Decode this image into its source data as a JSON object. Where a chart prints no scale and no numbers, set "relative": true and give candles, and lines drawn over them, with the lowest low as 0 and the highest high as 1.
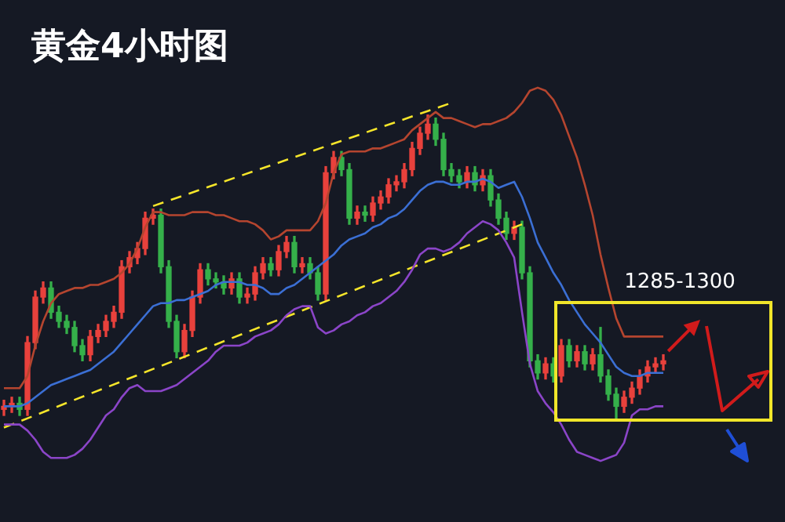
{
  "chart_data": {
    "type": "candlestick",
    "title": "黄金4小时图",
    "relative": true,
    "categories": [
      null,
      null,
      null,
      null,
      null,
      null,
      null,
      null,
      null,
      null,
      null,
      null,
      null,
      null,
      null,
      null,
      null,
      null,
      null,
      null,
      null,
      null,
      null,
      null,
      null,
      null,
      null,
      null,
      null,
      null,
      null,
      null,
      null,
      null,
      null,
      null,
      null,
      null,
      null,
      null,
      null,
      null,
      null,
      null,
      null,
      null,
      null,
      null,
      null,
      null,
      null,
      null,
      null,
      null,
      null,
      null,
      null,
      null,
      null,
      null,
      null,
      null,
      null,
      null,
      null,
      null,
      null,
      null,
      null,
      null,
      null,
      null,
      null,
      null,
      null,
      null,
      null,
      null,
      null,
      null,
      null,
      null,
      null,
      null,
      null
    ],
    "ohlc": [
      [
        0.03,
        0.06,
        0.01,
        0.04
      ],
      [
        0.04,
        0.07,
        0.02,
        0.05
      ],
      [
        0.05,
        0.07,
        0.01,
        0.03
      ],
      [
        0.03,
        0.27,
        0.01,
        0.25
      ],
      [
        0.25,
        0.42,
        0.23,
        0.4
      ],
      [
        0.4,
        0.45,
        0.38,
        0.43
      ],
      [
        0.43,
        0.45,
        0.33,
        0.35
      ],
      [
        0.35,
        0.37,
        0.3,
        0.32
      ],
      [
        0.32,
        0.34,
        0.28,
        0.3
      ],
      [
        0.3,
        0.32,
        0.22,
        0.24
      ],
      [
        0.24,
        0.26,
        0.19,
        0.21
      ],
      [
        0.21,
        0.29,
        0.19,
        0.27
      ],
      [
        0.27,
        0.31,
        0.25,
        0.29
      ],
      [
        0.29,
        0.34,
        0.27,
        0.32
      ],
      [
        0.32,
        0.37,
        0.3,
        0.35
      ],
      [
        0.35,
        0.52,
        0.33,
        0.5
      ],
      [
        0.5,
        0.55,
        0.48,
        0.53
      ],
      [
        0.53,
        0.58,
        0.51,
        0.56
      ],
      [
        0.56,
        0.68,
        0.54,
        0.66
      ],
      [
        0.66,
        0.69,
        0.64,
        0.67
      ],
      [
        0.67,
        0.69,
        0.48,
        0.5
      ],
      [
        0.5,
        0.52,
        0.3,
        0.32
      ],
      [
        0.32,
        0.34,
        0.2,
        0.22
      ],
      [
        0.22,
        0.31,
        0.2,
        0.29
      ],
      [
        0.29,
        0.42,
        0.27,
        0.4
      ],
      [
        0.4,
        0.51,
        0.38,
        0.49
      ],
      [
        0.49,
        0.51,
        0.44,
        0.46
      ],
      [
        0.46,
        0.48,
        0.43,
        0.45
      ],
      [
        0.45,
        0.47,
        0.41,
        0.43
      ],
      [
        0.43,
        0.48,
        0.41,
        0.46
      ],
      [
        0.46,
        0.48,
        0.38,
        0.4
      ],
      [
        0.4,
        0.43,
        0.38,
        0.41
      ],
      [
        0.41,
        0.5,
        0.39,
        0.48
      ],
      [
        0.48,
        0.53,
        0.46,
        0.51
      ],
      [
        0.51,
        0.53,
        0.47,
        0.49
      ],
      [
        0.49,
        0.57,
        0.47,
        0.55
      ],
      [
        0.55,
        0.6,
        0.53,
        0.58
      ],
      [
        0.58,
        0.6,
        0.48,
        0.5
      ],
      [
        0.5,
        0.53,
        0.48,
        0.51
      ],
      [
        0.51,
        0.53,
        0.46,
        0.48
      ],
      [
        0.48,
        0.5,
        0.39,
        0.41
      ],
      [
        0.41,
        0.83,
        0.39,
        0.81
      ],
      [
        0.81,
        0.88,
        0.79,
        0.86
      ],
      [
        0.86,
        0.88,
        0.8,
        0.82
      ],
      [
        0.82,
        0.84,
        0.64,
        0.66
      ],
      [
        0.66,
        0.7,
        0.64,
        0.68
      ],
      [
        0.68,
        0.7,
        0.65,
        0.67
      ],
      [
        0.67,
        0.73,
        0.65,
        0.71
      ],
      [
        0.71,
        0.75,
        0.69,
        0.73
      ],
      [
        0.73,
        0.79,
        0.71,
        0.77
      ],
      [
        0.77,
        0.8,
        0.75,
        0.78
      ],
      [
        0.78,
        0.84,
        0.76,
        0.82
      ],
      [
        0.82,
        0.91,
        0.8,
        0.89
      ],
      [
        0.89,
        0.96,
        0.87,
        0.94
      ],
      [
        0.94,
        1.0,
        0.92,
        0.97
      ],
      [
        0.97,
        0.99,
        0.9,
        0.92
      ],
      [
        0.92,
        0.94,
        0.8,
        0.82
      ],
      [
        0.82,
        0.84,
        0.78,
        0.8
      ],
      [
        0.8,
        0.82,
        0.76,
        0.78
      ],
      [
        0.78,
        0.83,
        0.76,
        0.81
      ],
      [
        0.81,
        0.83,
        0.75,
        0.77
      ],
      [
        0.77,
        0.82,
        0.75,
        0.8
      ],
      [
        0.8,
        0.82,
        0.7,
        0.72
      ],
      [
        0.72,
        0.74,
        0.64,
        0.66
      ],
      [
        0.66,
        0.68,
        0.59,
        0.61
      ],
      [
        0.61,
        0.65,
        0.59,
        0.63
      ],
      [
        0.63,
        0.65,
        0.46,
        0.48
      ],
      [
        0.48,
        0.5,
        0.17,
        0.19
      ],
      [
        0.19,
        0.21,
        0.13,
        0.15
      ],
      [
        0.15,
        0.2,
        0.13,
        0.18
      ],
      [
        0.18,
        0.2,
        0.12,
        0.14
      ],
      [
        0.14,
        0.26,
        0.12,
        0.24
      ],
      [
        0.24,
        0.26,
        0.17,
        0.19
      ],
      [
        0.19,
        0.24,
        0.17,
        0.22
      ],
      [
        0.22,
        0.24,
        0.16,
        0.18
      ],
      [
        0.18,
        0.23,
        0.16,
        0.21
      ],
      [
        0.21,
        0.3,
        0.12,
        0.14
      ],
      [
        0.14,
        0.16,
        0.06,
        0.08
      ],
      [
        0.08,
        0.1,
        0.0,
        0.04
      ],
      [
        0.04,
        0.09,
        0.02,
        0.07
      ],
      [
        0.07,
        0.12,
        0.05,
        0.1
      ],
      [
        0.1,
        0.16,
        0.08,
        0.14
      ],
      [
        0.14,
        0.19,
        0.12,
        0.17
      ],
      [
        0.17,
        0.2,
        0.15,
        0.18
      ],
      [
        0.18,
        0.21,
        0.16,
        0.19
      ]
    ],
    "colors": [
      "#e8413c",
      "#e8413c",
      "#35b04a",
      "#e8413c",
      "#e8413c",
      "#e8413c",
      "#35b04a",
      "#35b04a",
      "#35b04a",
      "#35b04a",
      "#35b04a",
      "#e8413c",
      "#e8413c",
      "#e8413c",
      "#e8413c",
      "#e8413c",
      "#e8413c",
      "#e8413c",
      "#e8413c",
      "#e8413c",
      "#35b04a",
      "#35b04a",
      "#35b04a",
      "#e8413c",
      "#e8413c",
      "#e8413c",
      "#35b04a",
      "#35b04a",
      "#35b04a",
      "#e8413c",
      "#35b04a",
      "#e8413c",
      "#e8413c",
      "#e8413c",
      "#35b04a",
      "#e8413c",
      "#e8413c",
      "#35b04a",
      "#e8413c",
      "#35b04a",
      "#35b04a",
      "#e8413c",
      "#e8413c",
      "#35b04a",
      "#35b04a",
      "#e8413c",
      "#35b04a",
      "#e8413c",
      "#e8413c",
      "#e8413c",
      "#e8413c",
      "#e8413c",
      "#e8413c",
      "#e8413c",
      "#e8413c",
      "#35b04a",
      "#35b04a",
      "#35b04a",
      "#35b04a",
      "#e8413c",
      "#35b04a",
      "#e8413c",
      "#35b04a",
      "#35b04a",
      "#35b04a",
      "#e8413c",
      "#35b04a",
      "#35b04a",
      "#35b04a",
      "#e8413c",
      "#35b04a",
      "#e8413c",
      "#35b04a",
      "#e8413c",
      "#35b04a",
      "#e8413c",
      "#35b04a",
      "#35b04a",
      "#35b04a",
      "#e8413c",
      "#e8413c",
      "#e8413c",
      "#e8413c",
      "#e8413c",
      "#e8413c"
    ],
    "series": [
      {
        "type": "line",
        "color": "#b5452f",
        "values": [
          0.1,
          0.1,
          0.1,
          0.14,
          0.24,
          0.32,
          0.38,
          0.41,
          0.42,
          0.43,
          0.43,
          0.44,
          0.44,
          0.45,
          0.46,
          0.48,
          0.51,
          0.56,
          0.63,
          0.68,
          0.68,
          0.67,
          0.67,
          0.67,
          0.68,
          0.68,
          0.68,
          0.67,
          0.67,
          0.66,
          0.65,
          0.65,
          0.64,
          0.62,
          0.59,
          0.6,
          0.62,
          0.62,
          0.62,
          0.62,
          0.65,
          0.71,
          0.81,
          0.87,
          0.88,
          0.88,
          0.88,
          0.89,
          0.89,
          0.9,
          0.91,
          0.92,
          0.95,
          0.97,
          0.99,
          1.01,
          0.99,
          0.99,
          0.98,
          0.97,
          0.96,
          0.97,
          0.97,
          0.98,
          0.99,
          1.01,
          1.04,
          1.08,
          1.09,
          1.08,
          1.05,
          1.0,
          0.93,
          0.86,
          0.77,
          0.67,
          0.54,
          0.43,
          0.33,
          0.27,
          0.27,
          0.27,
          0.27,
          0.27,
          0.27
        ]
      },
      {
        "type": "line",
        "color": "#3b6fd4",
        "values": [
          0.04,
          0.04,
          0.04,
          0.05,
          0.07,
          0.09,
          0.11,
          0.12,
          0.13,
          0.14,
          0.15,
          0.16,
          0.18,
          0.2,
          0.22,
          0.25,
          0.28,
          0.31,
          0.34,
          0.37,
          0.38,
          0.38,
          0.39,
          0.39,
          0.4,
          0.41,
          0.42,
          0.44,
          0.45,
          0.45,
          0.45,
          0.44,
          0.44,
          0.43,
          0.41,
          0.41,
          0.43,
          0.44,
          0.46,
          0.48,
          0.5,
          0.52,
          0.54,
          0.57,
          0.59,
          0.6,
          0.61,
          0.63,
          0.64,
          0.66,
          0.67,
          0.69,
          0.72,
          0.75,
          0.77,
          0.78,
          0.78,
          0.77,
          0.77,
          0.78,
          0.78,
          0.79,
          0.78,
          0.76,
          0.77,
          0.78,
          0.73,
          0.66,
          0.58,
          0.53,
          0.48,
          0.44,
          0.39,
          0.35,
          0.31,
          0.28,
          0.25,
          0.21,
          0.17,
          0.15,
          0.14,
          0.14,
          0.15,
          0.15,
          0.15
        ]
      },
      {
        "type": "line",
        "color": "#8b45c8",
        "values": [
          -0.02,
          -0.02,
          -0.02,
          -0.04,
          -0.07,
          -0.11,
          -0.13,
          -0.13,
          -0.13,
          -0.12,
          -0.1,
          -0.07,
          -0.03,
          0.01,
          0.03,
          0.07,
          0.1,
          0.11,
          0.09,
          0.09,
          0.09,
          0.1,
          0.11,
          0.13,
          0.15,
          0.17,
          0.19,
          0.22,
          0.24,
          0.24,
          0.24,
          0.25,
          0.27,
          0.28,
          0.29,
          0.31,
          0.34,
          0.36,
          0.37,
          0.37,
          0.3,
          0.28,
          0.29,
          0.31,
          0.32,
          0.34,
          0.35,
          0.37,
          0.38,
          0.4,
          0.42,
          0.45,
          0.49,
          0.54,
          0.56,
          0.56,
          0.55,
          0.56,
          0.58,
          0.61,
          0.63,
          0.65,
          0.64,
          0.62,
          0.58,
          0.53,
          0.35,
          0.18,
          0.09,
          0.05,
          0.02,
          -0.02,
          -0.07,
          -0.11,
          -0.12,
          -0.13,
          -0.14,
          -0.13,
          -0.12,
          -0.08,
          0.01,
          0.03,
          0.03,
          0.04,
          0.04
        ]
      },
      {
        "type": "line",
        "color": "#f5e52a",
        "line_style": "dashed",
        "values": [
          null,
          null,
          null,
          null,
          null,
          null,
          null,
          null,
          null,
          null,
          null,
          null,
          null,
          null,
          null,
          null,
          null,
          null,
          null,
          0.7,
          null,
          null,
          null,
          null,
          null,
          null,
          null,
          null,
          null,
          null,
          null,
          null,
          null,
          null,
          null,
          null,
          null,
          null,
          null,
          null,
          null,
          null,
          null,
          null,
          null,
          null,
          null,
          null,
          null,
          null,
          null,
          null,
          null,
          null,
          null,
          null,
          null,
          1.04,
          null,
          null,
          null,
          null,
          null,
          null,
          null,
          null,
          null,
          null,
          null,
          null,
          null,
          null,
          null,
          null,
          null,
          null,
          null,
          null,
          null,
          null,
          null,
          null,
          null,
          null,
          null
        ]
      },
      {
        "type": "line",
        "color": "#f5e52a",
        "line_style": "dashed",
        "values": [
          -0.03,
          null,
          null,
          null,
          null,
          null,
          null,
          null,
          null,
          null,
          null,
          null,
          null,
          null,
          null,
          null,
          null,
          null,
          null,
          null,
          null,
          null,
          null,
          null,
          null,
          null,
          null,
          null,
          null,
          null,
          null,
          null,
          null,
          null,
          null,
          null,
          null,
          null,
          null,
          null,
          null,
          null,
          null,
          null,
          null,
          null,
          null,
          null,
          null,
          null,
          null,
          null,
          null,
          null,
          null,
          null,
          null,
          null,
          null,
          null,
          null,
          null,
          null,
          null,
          null,
          null,
          0.64,
          null,
          null,
          null,
          null,
          null,
          null,
          null,
          null,
          null,
          null,
          null,
          null,
          null,
          null,
          null,
          null,
          null,
          null
        ]
      }
    ],
    "annotations": [
      "1285-1300"
    ]
  }
}
